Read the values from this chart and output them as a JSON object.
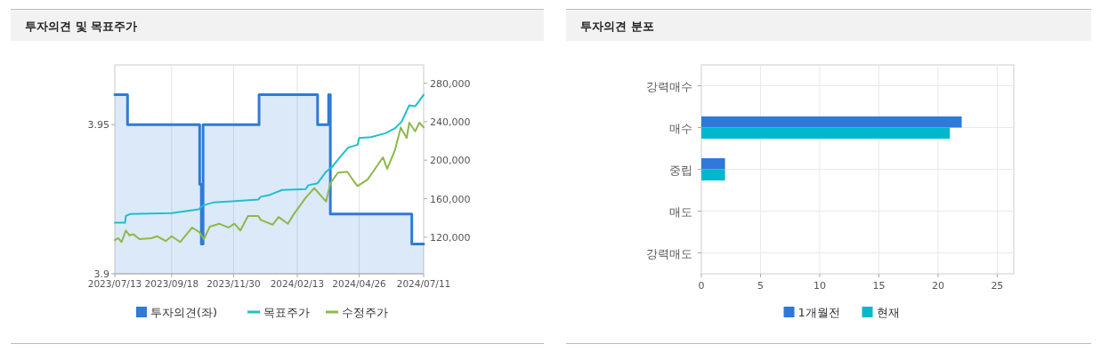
{
  "chart_data": [
    {
      "type": "line",
      "title": "투자의견 및 목표주가",
      "xlim": [
        "2023-07-13",
        "2024-07-11"
      ],
      "xticks": [
        {
          "value": "2023-07-13",
          "label": "2023/07/13"
        },
        {
          "value": "2023-09-18",
          "label": "2023/09/18"
        },
        {
          "value": "2023-11-30",
          "label": "2023/11/30"
        },
        {
          "value": "2024-02-13",
          "label": "2024/02/13"
        },
        {
          "value": "2024-04-26",
          "label": "2024/04/26"
        },
        {
          "value": "2024-07-11",
          "label": "2024/07/11"
        }
      ],
      "ylim": [
        3.9,
        3.97
      ],
      "yticks": [
        3.9,
        3.95
      ],
      "y2lim": [
        82000,
        299000
      ],
      "y2ticks": [
        {
          "value": 120000,
          "label": "120,000"
        },
        {
          "value": 160000,
          "label": "160,000"
        },
        {
          "value": 200000,
          "label": "200,000"
        },
        {
          "value": 240000,
          "label": "240,000"
        },
        {
          "value": 280000,
          "label": "280,000"
        }
      ],
      "grid": "x",
      "legend": "bottom",
      "series": [
        {
          "name": "투자의견(좌)",
          "type": "area",
          "color": "#2f7bd6",
          "x": [
            "2023-07-13",
            "2023-07-28",
            "2023-07-28",
            "2023-10-21",
            "2023-10-21",
            "2023-10-23",
            "2023-10-23",
            "2023-10-25",
            "2023-10-25",
            "2023-12-30",
            "2023-12-30",
            "2024-03-08",
            "2024-03-08",
            "2024-03-21",
            "2024-03-21",
            "2024-03-23",
            "2024-03-23",
            "2024-06-27",
            "2024-06-27",
            "2024-07-11"
          ],
          "values": [
            3.96,
            3.96,
            3.95,
            3.95,
            3.93,
            3.93,
            3.91,
            3.91,
            3.95,
            3.95,
            3.96,
            3.96,
            3.95,
            3.95,
            3.96,
            3.96,
            3.92,
            3.92,
            3.91,
            3.91
          ]
        },
        {
          "name": "목표주가",
          "type": "line",
          "axis": "y2",
          "color": "#1fbfcc",
          "x": [
            "2023-07-13",
            "2023-07-25",
            "2023-07-26",
            "2023-07-31",
            "2023-09-18",
            "2023-10-20",
            "2023-10-25",
            "2023-11-06",
            "2023-11-24",
            "2023-12-29",
            "2024-01-01",
            "2024-01-12",
            "2024-01-26",
            "2024-02-23",
            "2024-02-26",
            "2024-03-08",
            "2024-03-18",
            "2024-03-25",
            "2024-04-05",
            "2024-04-13",
            "2024-04-24",
            "2024-04-26",
            "2024-05-10",
            "2024-05-27",
            "2024-06-07",
            "2024-06-15",
            "2024-06-24",
            "2024-07-01",
            "2024-07-11"
          ],
          "values": [
            135000,
            135000,
            142000,
            144000,
            145000,
            149000,
            153000,
            156000,
            157000,
            159000,
            162000,
            164000,
            169000,
            170000,
            174000,
            176000,
            188000,
            193000,
            205000,
            213000,
            216000,
            223000,
            224000,
            228000,
            233000,
            240000,
            257000,
            256000,
            268000
          ]
        },
        {
          "name": "수정주가",
          "type": "line",
          "axis": "y2",
          "color": "#8db84a",
          "x": [
            "2023-07-13",
            "2023-07-17",
            "2023-07-21",
            "2023-07-26",
            "2023-07-30",
            "2023-08-04",
            "2023-08-11",
            "2023-08-25",
            "2023-09-01",
            "2023-09-11",
            "2023-09-18",
            "2023-09-28",
            "2023-10-12",
            "2023-10-21",
            "2023-10-26",
            "2023-11-02",
            "2023-11-13",
            "2023-11-24",
            "2023-12-01",
            "2023-12-08",
            "2023-12-17",
            "2023-12-29",
            "2024-01-01",
            "2024-01-15",
            "2024-01-22",
            "2024-02-02",
            "2024-02-09",
            "2024-02-23",
            "2024-03-04",
            "2024-03-11",
            "2024-03-18",
            "2024-03-23",
            "2024-04-01",
            "2024-04-12",
            "2024-04-19",
            "2024-04-24",
            "2024-05-06",
            "2024-05-17",
            "2024-05-24",
            "2024-05-29",
            "2024-06-07",
            "2024-06-14",
            "2024-06-21",
            "2024-06-24",
            "2024-07-01",
            "2024-07-06",
            "2024-07-11"
          ],
          "values": [
            117000,
            119000,
            115000,
            127000,
            122000,
            123000,
            118000,
            119000,
            121000,
            116000,
            121000,
            115000,
            130000,
            125000,
            118000,
            131000,
            134000,
            130000,
            134000,
            127000,
            142000,
            142000,
            138000,
            133000,
            141000,
            134000,
            144000,
            161000,
            171000,
            164000,
            157000,
            176000,
            187000,
            188000,
            179000,
            173000,
            180000,
            194000,
            203000,
            191000,
            210000,
            234000,
            223000,
            239000,
            230000,
            239000,
            234000
          ]
        }
      ]
    },
    {
      "type": "bar",
      "title": "투자의견 분포",
      "orientation": "horizontal",
      "categories": [
        "강력매수",
        "매수",
        "중립",
        "매도",
        "강력매도"
      ],
      "xlim": [
        0,
        26.4
      ],
      "xticks": [
        0,
        5,
        10,
        15,
        20,
        25
      ],
      "grid": true,
      "legend": "bottom",
      "series": [
        {
          "name": "1개월전",
          "color": "#2e79d9",
          "values": [
            0,
            22,
            2,
            0,
            0
          ]
        },
        {
          "name": "현재",
          "color": "#00b8cc",
          "values": [
            0,
            21,
            2,
            0,
            0
          ]
        }
      ]
    }
  ]
}
